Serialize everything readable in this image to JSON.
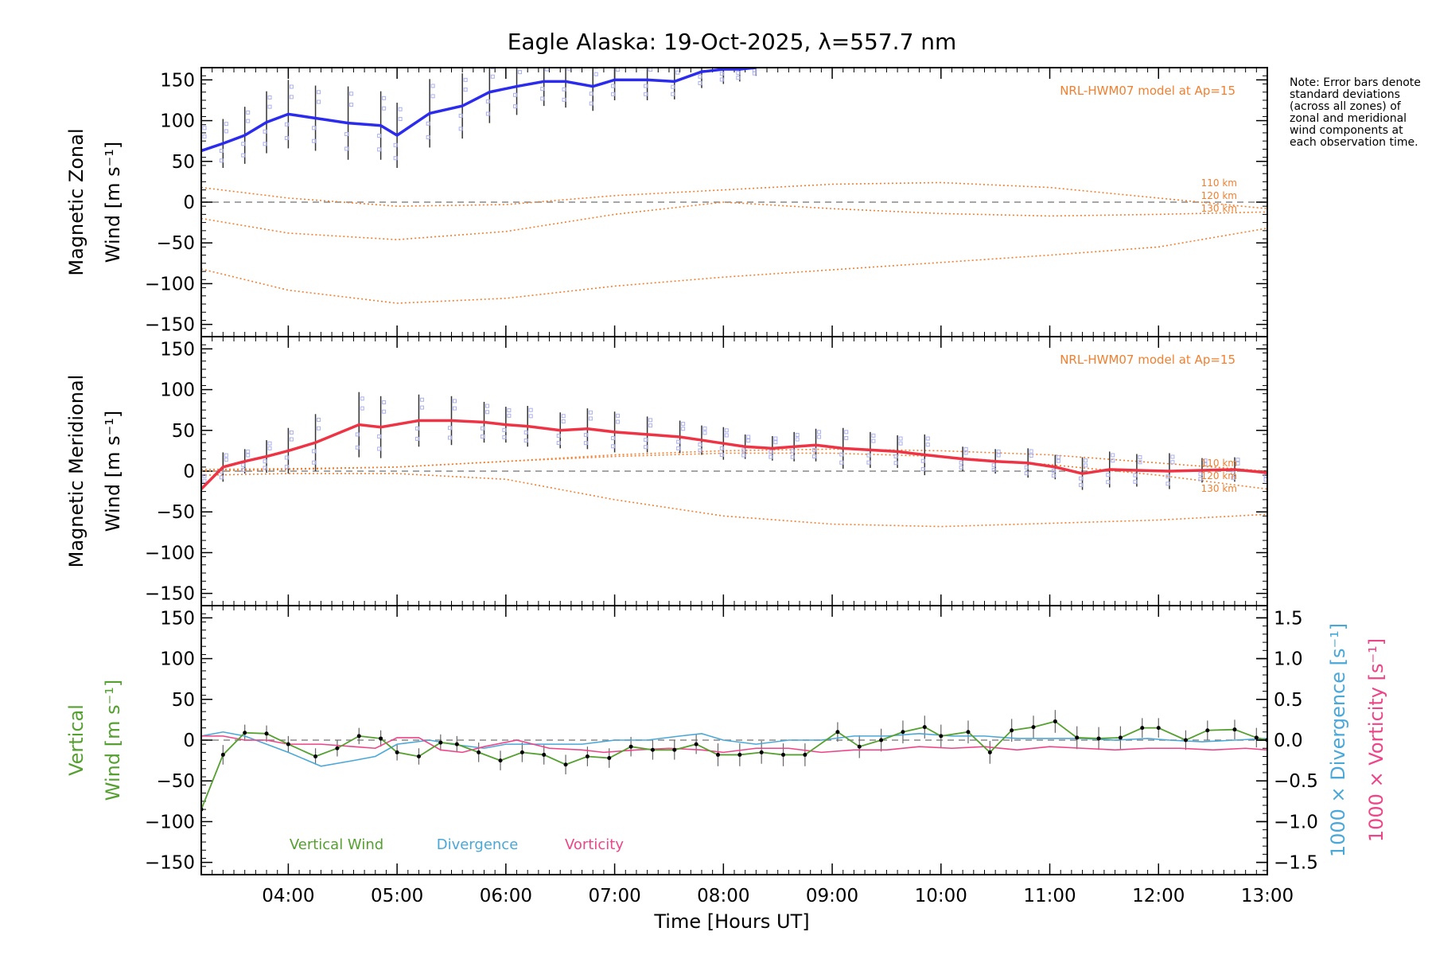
{
  "figure": {
    "title": "Eagle Alaska: 19-Oct-2025, λ=557.7 nm",
    "xlabel": "Time [Hours UT]",
    "note": "Note: Error bars denote standard deviations (across all zones) of zonal and meridional wind components at each observation time.",
    "colors": {
      "zonal": "#2b2bee",
      "meridional": "#ee3344",
      "model": "#f08030",
      "scatter": "#aab0ee",
      "vertical": "#55a030",
      "divergence": "#4aa8d8",
      "vorticity": "#ee4488",
      "errorbar": "#333333"
    }
  },
  "chart_data": [
    {
      "type": "line",
      "id": "zonal",
      "ylabel_line1": "Magnetic Zonal",
      "ylabel_line2": "Wind [m s⁻¹]",
      "model_label": "NRL-HWM07 model at Ap=15",
      "model_alt_labels": [
        "110 km",
        "120 km",
        "130 km"
      ],
      "ylim": [
        -165,
        165
      ],
      "yticks": [
        150,
        100,
        50,
        0,
        -50,
        -100,
        -150
      ],
      "xlim": [
        3.2,
        13.0
      ],
      "xticks": [
        "04:00",
        "05:00",
        "06:00",
        "07:00",
        "08:00",
        "09:00",
        "10:00",
        "11:00",
        "12:00",
        "13:00"
      ],
      "series": [
        {
          "name": "Zonal wind",
          "x": [
            3.2,
            3.4,
            3.6,
            3.8,
            4.0,
            4.25,
            4.55,
            4.85,
            5.0,
            5.3,
            5.6,
            5.85,
            6.1,
            6.35,
            6.55,
            6.8,
            7.0,
            7.3,
            7.55,
            7.8,
            8.0,
            8.15,
            8.3
          ],
          "y": [
            63,
            72,
            82,
            98,
            108,
            103,
            97,
            94,
            82,
            109,
            118,
            135,
            142,
            148,
            148,
            142,
            150,
            150,
            148,
            160,
            163,
            163,
            165
          ],
          "err": [
            35,
            30,
            35,
            38,
            42,
            40,
            45,
            42,
            40,
            42,
            40,
            38,
            35,
            30,
            32,
            30,
            25,
            25,
            22,
            20,
            18,
            15,
            10
          ]
        },
        {
          "name": "HWM07 110 km",
          "x": [
            3.2,
            4.0,
            5.0,
            6.0,
            7.0,
            8.0,
            9.0,
            10.0,
            11.0,
            12.0,
            13.0
          ],
          "y": [
            18,
            5,
            -5,
            -3,
            8,
            15,
            22,
            24,
            18,
            5,
            -8
          ]
        },
        {
          "name": "HWM07 120 km",
          "x": [
            3.2,
            4.0,
            5.0,
            6.0,
            7.0,
            8.0,
            9.0,
            10.0,
            11.0,
            12.0,
            13.0
          ],
          "y": [
            -20,
            -38,
            -46,
            -36,
            -15,
            0,
            -8,
            -14,
            -17,
            -15,
            -12
          ]
        },
        {
          "name": "HWM07 130 km",
          "x": [
            3.2,
            4.0,
            5.0,
            6.0,
            7.0,
            8.0,
            9.0,
            10.0,
            11.0,
            12.0,
            13.0
          ],
          "y": [
            -82,
            -108,
            -124,
            -118,
            -103,
            -92,
            -83,
            -74,
            -65,
            -55,
            -32
          ]
        }
      ]
    },
    {
      "type": "line",
      "id": "meridional",
      "ylabel_line1": "Magnetic Meridional",
      "ylabel_line2": "Wind [m s⁻¹]",
      "model_label": "NRL-HWM07 model at Ap=15",
      "model_alt_labels": [
        "110 km",
        "120 km",
        "130 km"
      ],
      "ylim": [
        -165,
        165
      ],
      "yticks": [
        150,
        100,
        50,
        0,
        -50,
        -100,
        -150
      ],
      "xlim": [
        3.2,
        13.0
      ],
      "xticks": [
        "04:00",
        "05:00",
        "06:00",
        "07:00",
        "08:00",
        "09:00",
        "10:00",
        "11:00",
        "12:00",
        "13:00"
      ],
      "series": [
        {
          "name": "Meridional wind",
          "x": [
            3.2,
            3.4,
            3.6,
            3.8,
            4.0,
            4.25,
            4.65,
            4.85,
            5.2,
            5.5,
            5.8,
            6.0,
            6.2,
            6.5,
            6.75,
            7.0,
            7.3,
            7.6,
            7.8,
            8.0,
            8.2,
            8.45,
            8.65,
            8.85,
            9.1,
            9.35,
            9.6,
            9.85,
            10.2,
            10.5,
            10.8,
            11.05,
            11.3,
            11.55,
            11.8,
            12.1,
            12.4,
            12.7,
            13.0
          ],
          "y": [
            -22,
            5,
            12,
            18,
            25,
            35,
            57,
            54,
            62,
            62,
            60,
            57,
            55,
            50,
            52,
            48,
            45,
            42,
            38,
            34,
            30,
            28,
            30,
            32,
            28,
            26,
            24,
            20,
            15,
            12,
            10,
            5,
            -3,
            2,
            1,
            0,
            1,
            2,
            -2
          ],
          "err": [
            20,
            18,
            15,
            20,
            28,
            35,
            40,
            38,
            32,
            30,
            25,
            22,
            25,
            22,
            25,
            25,
            22,
            20,
            18,
            20,
            15,
            15,
            18,
            20,
            25,
            22,
            20,
            25,
            15,
            15,
            18,
            15,
            20,
            22,
            20,
            22,
            15,
            15,
            12
          ]
        },
        {
          "name": "HWM07 110 km",
          "x": [
            3.2,
            4.0,
            5.0,
            6.0,
            7.0,
            8.0,
            9.0,
            10.0,
            11.0,
            12.0,
            13.0
          ],
          "y": [
            2,
            3,
            5,
            12,
            20,
            25,
            27,
            25,
            20,
            10,
            0
          ]
        },
        {
          "name": "HWM07 120 km",
          "x": [
            3.2,
            4.0,
            5.0,
            6.0,
            7.0,
            8.0,
            9.0,
            10.0,
            11.0,
            12.0,
            13.0
          ],
          "y": [
            0,
            2,
            5,
            12,
            18,
            22,
            22,
            18,
            8,
            -5,
            -22
          ]
        },
        {
          "name": "HWM07 130 km",
          "x": [
            3.2,
            4.0,
            5.0,
            6.0,
            7.0,
            8.0,
            9.0,
            10.0,
            11.0,
            12.0,
            13.0
          ],
          "y": [
            -5,
            -3,
            -3,
            -10,
            -35,
            -55,
            -65,
            -68,
            -64,
            -60,
            -53
          ]
        }
      ]
    },
    {
      "type": "line",
      "id": "vertical",
      "ylabel_line1": "Vertical",
      "ylabel_line2": "Wind [m s⁻¹]",
      "y2label_1": "1000 × Divergence [s⁻¹]",
      "y2label_2": "1000 × Vorticity [s⁻¹]",
      "legend": [
        "Vertical Wind",
        "Divergence",
        "Vorticity"
      ],
      "ylim": [
        -165,
        165
      ],
      "yticks": [
        150,
        100,
        50,
        0,
        -50,
        -100,
        -150
      ],
      "y2lim": [
        -1.65,
        1.65
      ],
      "y2ticks": [
        "1.5",
        "1.0",
        "0.5",
        "0.0",
        "−0.5",
        "−1.0",
        "−1.5"
      ],
      "y2values": [
        1.5,
        1.0,
        0.5,
        0.0,
        -0.5,
        -1.0,
        -1.5
      ],
      "xlim": [
        3.2,
        13.0
      ],
      "xticks": [
        "04:00",
        "05:00",
        "06:00",
        "07:00",
        "08:00",
        "09:00",
        "10:00",
        "11:00",
        "12:00",
        "13:00"
      ],
      "series": [
        {
          "name": "Vertical Wind",
          "x": [
            3.2,
            3.4,
            3.6,
            3.8,
            4.0,
            4.25,
            4.45,
            4.65,
            4.85,
            5.0,
            5.2,
            5.4,
            5.55,
            5.75,
            5.95,
            6.15,
            6.35,
            6.55,
            6.75,
            6.95,
            7.15,
            7.35,
            7.55,
            7.75,
            7.95,
            8.15,
            8.35,
            8.55,
            8.75,
            9.05,
            9.25,
            9.45,
            9.65,
            9.85,
            10.0,
            10.25,
            10.45,
            10.65,
            10.85,
            11.05,
            11.25,
            11.45,
            11.65,
            11.85,
            12.0,
            12.25,
            12.45,
            12.7,
            12.9,
            13.0
          ],
          "y": [
            -85,
            -18,
            9,
            8,
            -5,
            -20,
            -10,
            5,
            2,
            -15,
            -20,
            -3,
            -5,
            -15,
            -25,
            -15,
            -18,
            -30,
            -20,
            -22,
            -8,
            -12,
            -12,
            -5,
            -18,
            -18,
            -15,
            -18,
            -18,
            10,
            -8,
            0,
            10,
            16,
            5,
            10,
            -15,
            12,
            16,
            23,
            3,
            2,
            3,
            15,
            15,
            0,
            12,
            13,
            3,
            0
          ],
          "err": [
            0,
            12,
            10,
            10,
            10,
            10,
            10,
            10,
            10,
            10,
            10,
            10,
            10,
            12,
            12,
            12,
            12,
            12,
            12,
            12,
            12,
            12,
            12,
            12,
            14,
            14,
            14,
            14,
            14,
            12,
            14,
            14,
            14,
            14,
            14,
            14,
            14,
            14,
            14,
            14,
            14,
            14,
            14,
            12,
            12,
            12,
            12,
            12,
            12,
            0
          ]
        },
        {
          "name": "Divergence",
          "x": [
            3.2,
            3.4,
            3.6,
            3.8,
            4.0,
            4.3,
            4.6,
            4.8,
            5.0,
            5.3,
            5.5,
            5.8,
            6.0,
            6.2,
            6.5,
            6.7,
            7.0,
            7.3,
            7.6,
            7.8,
            8.0,
            8.3,
            8.6,
            8.9,
            9.2,
            9.5,
            9.8,
            10.1,
            10.4,
            10.7,
            11.0,
            11.3,
            11.6,
            11.9,
            12.1,
            12.4,
            12.7,
            13.0
          ],
          "y": [
            0.05,
            0.1,
            0.05,
            -0.05,
            -0.15,
            -0.32,
            -0.25,
            -0.2,
            -0.05,
            0.0,
            -0.05,
            -0.1,
            -0.05,
            -0.05,
            -0.05,
            -0.05,
            0.0,
            0.0,
            0.05,
            0.08,
            0.0,
            -0.05,
            0.0,
            0.0,
            0.05,
            0.05,
            0.08,
            0.05,
            0.05,
            0.02,
            0.02,
            0.02,
            0.0,
            0.02,
            0.0,
            -0.02,
            0.0,
            0.02
          ]
        },
        {
          "name": "Vorticity",
          "x": [
            3.2,
            3.4,
            3.6,
            3.8,
            4.0,
            4.3,
            4.6,
            4.8,
            5.0,
            5.2,
            5.4,
            5.6,
            5.8,
            6.1,
            6.4,
            6.7,
            6.9,
            7.2,
            7.5,
            7.8,
            8.0,
            8.3,
            8.6,
            8.9,
            9.2,
            9.5,
            9.8,
            10.1,
            10.4,
            10.7,
            11.0,
            11.3,
            11.6,
            11.9,
            12.2,
            12.5,
            12.8,
            13.0
          ],
          "y": [
            0.05,
            0.05,
            0.0,
            0.0,
            -0.05,
            -0.05,
            -0.08,
            -0.1,
            0.03,
            0.03,
            -0.12,
            -0.15,
            -0.08,
            0.0,
            -0.1,
            -0.12,
            -0.15,
            -0.12,
            -0.1,
            -0.12,
            -0.15,
            -0.1,
            -0.1,
            -0.15,
            -0.12,
            -0.12,
            -0.08,
            -0.1,
            -0.08,
            -0.12,
            -0.08,
            -0.1,
            -0.12,
            -0.1,
            -0.1,
            -0.12,
            -0.1,
            -0.12
          ]
        }
      ]
    }
  ]
}
